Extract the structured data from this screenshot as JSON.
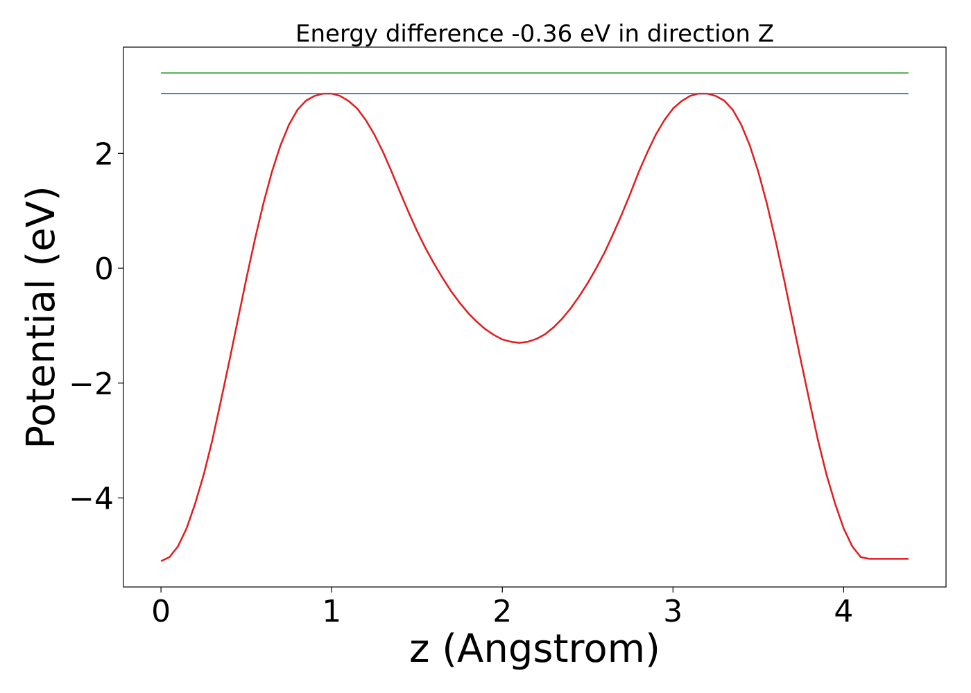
{
  "chart_data": {
    "type": "line",
    "title": "Energy difference -0.36 eV in direction Z",
    "xlabel": "z (Angstrom)",
    "ylabel": "Potential (eV)",
    "xlim": [
      -0.22,
      4.6
    ],
    "ylim": [
      -5.55,
      3.85
    ],
    "xticks": [
      0,
      1,
      2,
      3,
      4
    ],
    "xtick_labels": [
      "0",
      "1",
      "2",
      "3",
      "4"
    ],
    "yticks": [
      -4,
      -2,
      0,
      2
    ],
    "ytick_labels": [
      "−4",
      "−2",
      "0",
      "2"
    ],
    "grid": false,
    "series": [
      {
        "color": "#e41a1c",
        "x": [
          0,
          0.05,
          0.1,
          0.15,
          0.2,
          0.25,
          0.3,
          0.35,
          0.4,
          0.45,
          0.5,
          0.55,
          0.6,
          0.65,
          0.7,
          0.75,
          0.8,
          0.85,
          0.9,
          0.95,
          1.0,
          1.05,
          1.1,
          1.15,
          1.2,
          1.25,
          1.3,
          1.35,
          1.4,
          1.45,
          1.5,
          1.55,
          1.6,
          1.65,
          1.7,
          1.75,
          1.8,
          1.85,
          1.9,
          1.95,
          2.0,
          2.05,
          2.1,
          2.15,
          2.2,
          2.25,
          2.3,
          2.35,
          2.4,
          2.45,
          2.5,
          2.55,
          2.6,
          2.65,
          2.7,
          2.75,
          2.8,
          2.85,
          2.9,
          2.95,
          3.0,
          3.05,
          3.1,
          3.15,
          3.2,
          3.25,
          3.3,
          3.35,
          3.4,
          3.45,
          3.5,
          3.55,
          3.6,
          3.65,
          3.7,
          3.75,
          3.8,
          3.85,
          3.9,
          3.95,
          4.0,
          4.05,
          4.1,
          4.15,
          4.2,
          4.25,
          4.3,
          4.35,
          4.38
        ],
        "y": [
          -5.1,
          -5.03,
          -4.84,
          -4.53,
          -4.1,
          -3.6,
          -3.0,
          -2.32,
          -1.62,
          -0.9,
          -0.18,
          0.5,
          1.13,
          1.68,
          2.14,
          2.5,
          2.76,
          2.92,
          3.0,
          3.04,
          3.04,
          3.0,
          2.91,
          2.78,
          2.58,
          2.33,
          2.03,
          1.69,
          1.33,
          0.98,
          0.65,
          0.35,
          0.08,
          -0.17,
          -0.4,
          -0.6,
          -0.78,
          -0.93,
          -1.06,
          -1.16,
          -1.24,
          -1.28,
          -1.3,
          -1.28,
          -1.23,
          -1.15,
          -1.03,
          -0.88,
          -0.7,
          -0.49,
          -0.26,
          0.0,
          0.28,
          0.6,
          0.94,
          1.3,
          1.68,
          2.02,
          2.33,
          2.58,
          2.78,
          2.91,
          3.0,
          3.04,
          3.04,
          3.0,
          2.92,
          2.76,
          2.5,
          2.14,
          1.68,
          1.13,
          0.5,
          -0.18,
          -0.9,
          -1.62,
          -2.32,
          -3.0,
          -3.6,
          -4.1,
          -4.53,
          -4.84,
          -5.03,
          -5.06,
          -5.06,
          -5.06,
          -5.06,
          -5.06,
          -5.06
        ]
      },
      {
        "color": "#1f77b4",
        "x": [
          0,
          4.38
        ],
        "y": [
          3.04,
          3.04
        ]
      },
      {
        "color": "#2ca02c",
        "x": [
          0,
          4.38
        ],
        "y": [
          3.4,
          3.4
        ]
      }
    ]
  }
}
